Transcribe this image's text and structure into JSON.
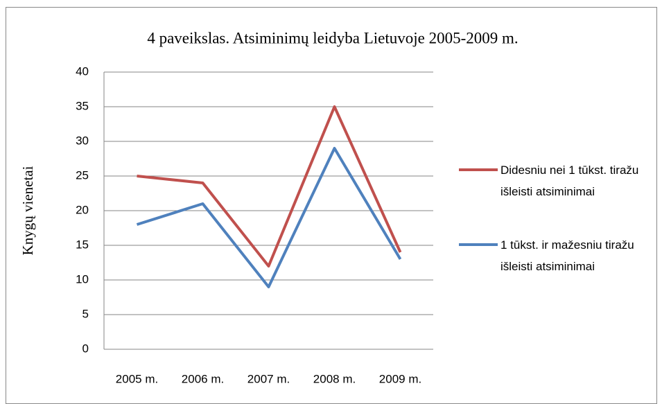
{
  "chart_data": {
    "type": "line",
    "title": "4 paveikslas. Atsiminimų leidyba Lietuvoje 2005-2009 m.",
    "y_label": "Knygų vienetai",
    "categories": [
      "2005 m.",
      "2006 m.",
      "2007 m.",
      "2008 m.",
      "2009 m."
    ],
    "series": [
      {
        "name": "Didesniu nei 1 tūkst. tiražu išleisti atsiminimai",
        "color": "#c0504d",
        "values": [
          25,
          24,
          12,
          35,
          14
        ]
      },
      {
        "name": "1 tūkst. ir mažesniu tiražu išleisti atsiminimai",
        "color": "#4f81bd",
        "values": [
          18,
          21,
          9,
          29,
          13
        ]
      }
    ],
    "ylim": [
      0,
      40
    ],
    "yticks": [
      0,
      5,
      10,
      15,
      20,
      25,
      30,
      35,
      40
    ],
    "grid": true,
    "legend": "right"
  }
}
